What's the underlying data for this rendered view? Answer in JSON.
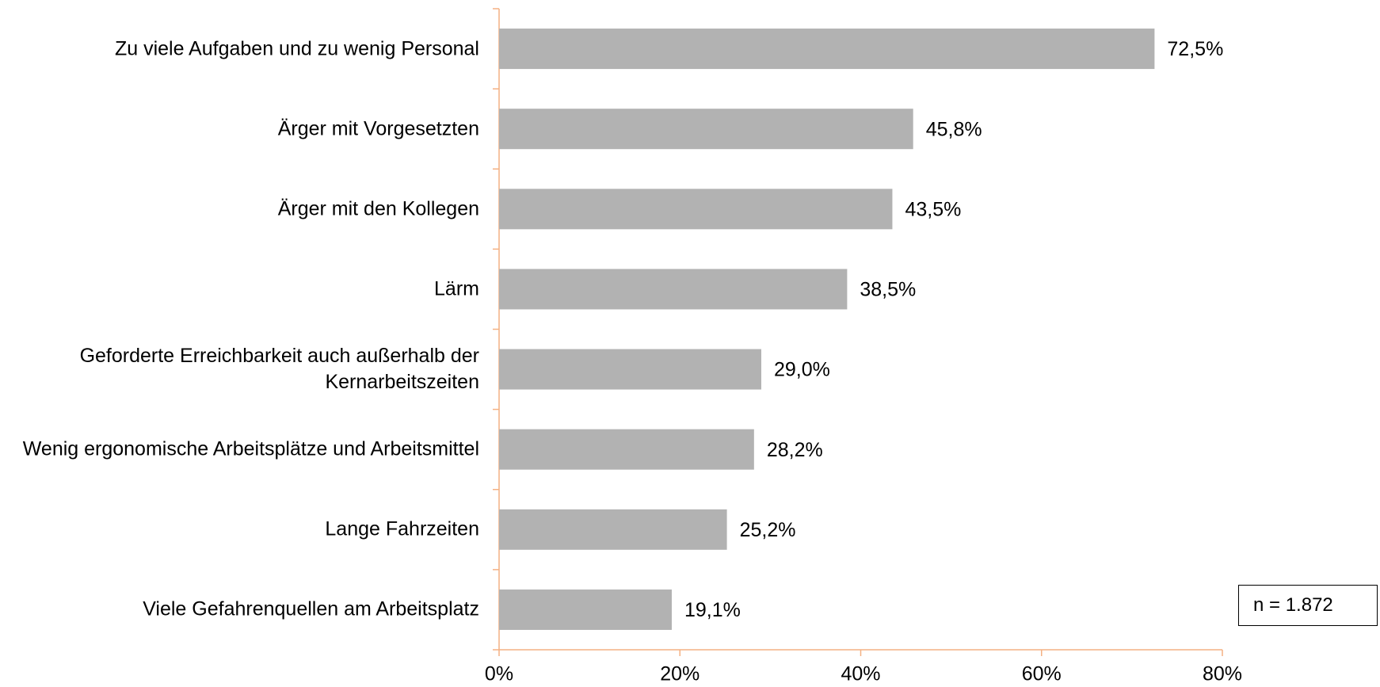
{
  "chart_data": {
    "type": "bar",
    "orientation": "horizontal",
    "categories": [
      "Zu viele Aufgaben und zu wenig Personal",
      "Ärger mit Vorgesetzten",
      "Ärger mit den Kollegen",
      "Lärm",
      "Geforderte Erreichbarkeit auch außerhalb der Kernarbeitszeiten",
      "Wenig ergonomische Arbeitsplätze und Arbeitsmittel",
      "Lange Fahrzeiten",
      "Viele Gefahrenquellen am Arbeitsplatz"
    ],
    "values": [
      72.5,
      45.8,
      43.5,
      38.5,
      29.0,
      28.2,
      25.2,
      19.1
    ],
    "value_labels": [
      "72,5%",
      "45,8%",
      "43,5%",
      "38,5%",
      "29,0%",
      "28,2%",
      "25,2%",
      "19,1%"
    ],
    "color": "#b2b2b2",
    "axis_color": "#f4b183",
    "xlim": [
      0,
      80
    ],
    "xticks": [
      {
        "value": 0,
        "label": "0%"
      },
      {
        "value": 20,
        "label": "20%"
      },
      {
        "value": 40,
        "label": "40%"
      },
      {
        "value": 60,
        "label": "60%"
      },
      {
        "value": 80,
        "label": "80%"
      }
    ],
    "grid": false,
    "annotation": "n = 1.872"
  }
}
